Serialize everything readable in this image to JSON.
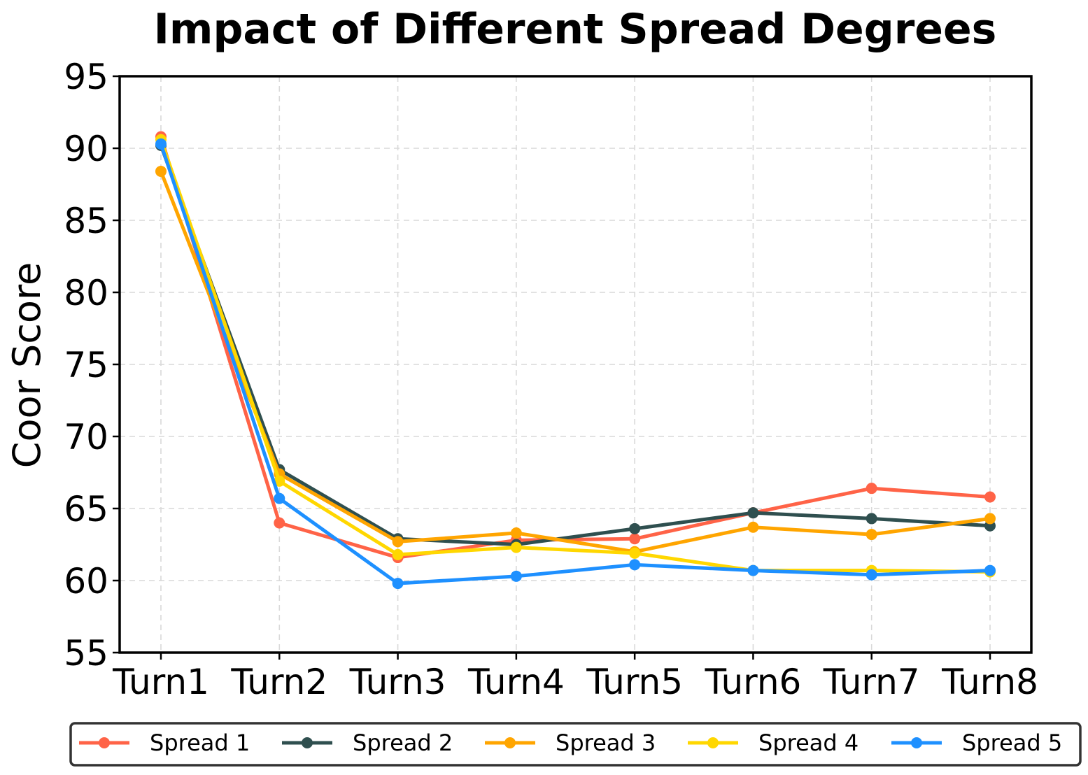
{
  "chart_data": {
    "type": "line",
    "title": "Impact of Different Spread Degrees",
    "xlabel": "",
    "ylabel": "Coor Score",
    "categories": [
      "Turn1",
      "Turn2",
      "Turn3",
      "Turn4",
      "Turn5",
      "Turn6",
      "Turn7",
      "Turn8"
    ],
    "ylim": [
      55,
      95
    ],
    "yticks": [
      55,
      60,
      65,
      70,
      75,
      80,
      85,
      90,
      95
    ],
    "grid": true,
    "legend_position": "bottom",
    "series": [
      {
        "name": "Spread 1",
        "color": "#ff6347",
        "values": [
          90.8,
          64.0,
          61.6,
          62.8,
          62.9,
          64.7,
          66.4,
          65.8
        ]
      },
      {
        "name": "Spread 2",
        "color": "#2f4f4f",
        "values": [
          90.2,
          67.7,
          62.9,
          62.5,
          63.6,
          64.7,
          64.3,
          63.8
        ]
      },
      {
        "name": "Spread 3",
        "color": "#ffa500",
        "values": [
          88.4,
          67.4,
          62.7,
          63.3,
          62.0,
          63.7,
          63.2,
          64.3
        ]
      },
      {
        "name": "Spread 4",
        "color": "#ffd700",
        "values": [
          90.6,
          66.9,
          61.8,
          62.3,
          61.9,
          60.7,
          60.7,
          60.6
        ]
      },
      {
        "name": "Spread 5",
        "color": "#1e90ff",
        "values": [
          90.3,
          65.7,
          59.8,
          60.3,
          61.1,
          60.7,
          60.4,
          60.7
        ]
      }
    ]
  }
}
